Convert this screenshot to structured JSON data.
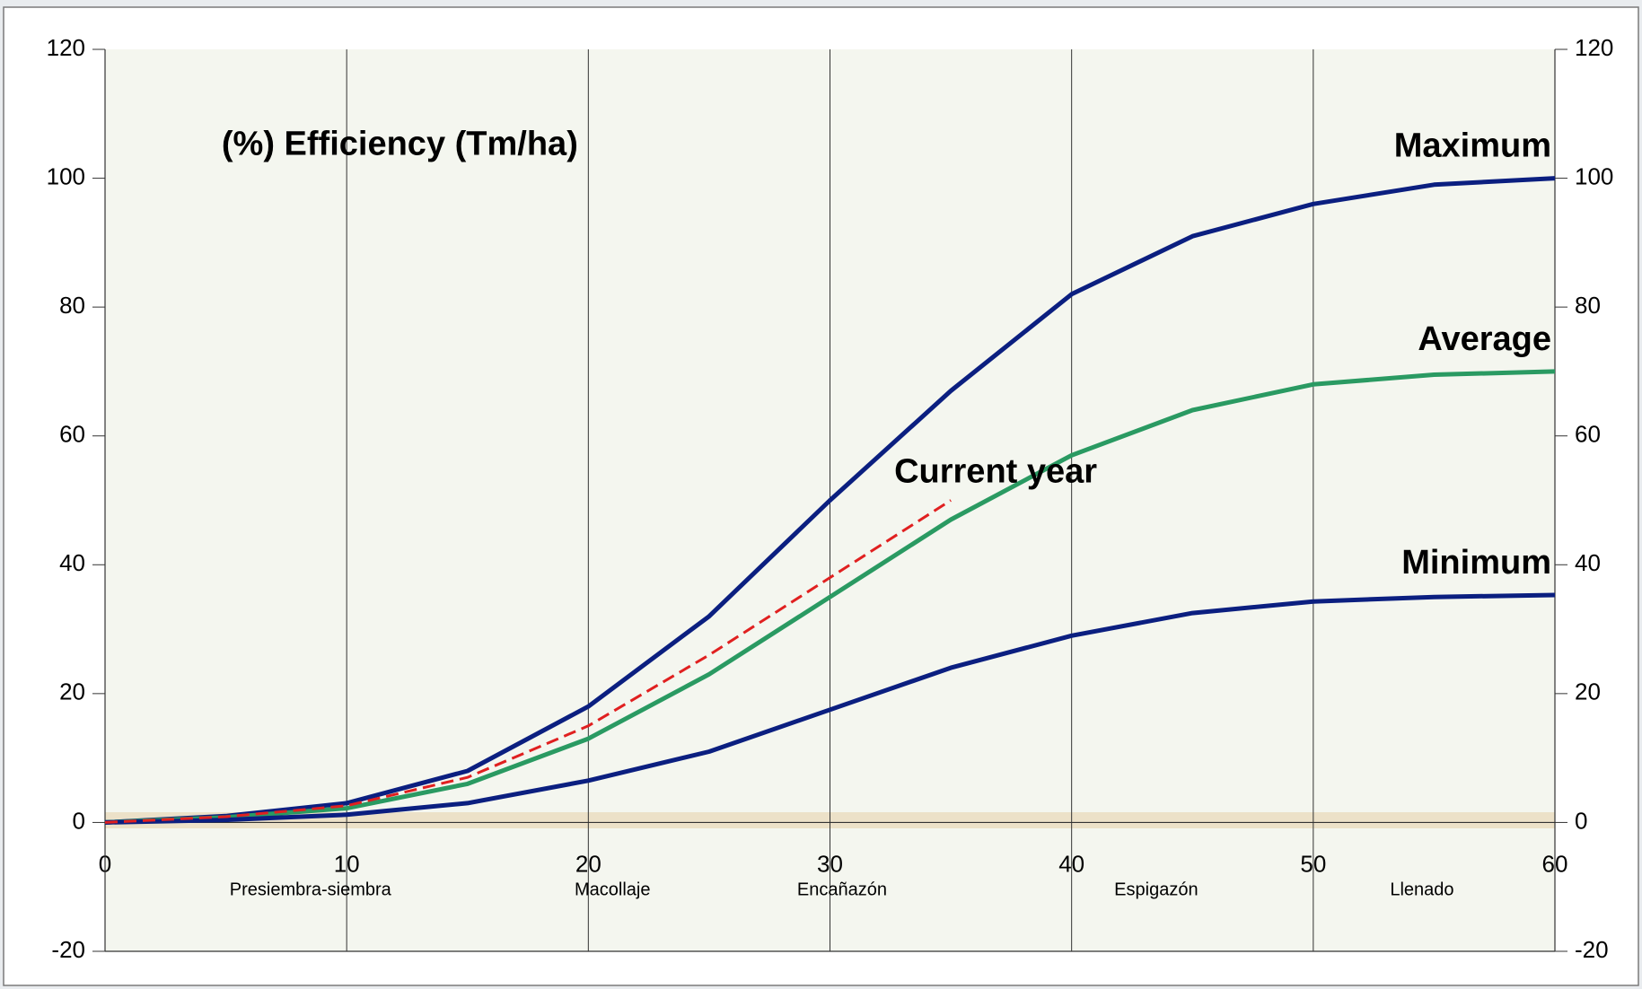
{
  "chart_data": {
    "type": "line",
    "y_label": "(%) Efficiency (Tm/ha)",
    "x": [
      0,
      5,
      10,
      15,
      20,
      25,
      30,
      35,
      40,
      45,
      50,
      55,
      60
    ],
    "series": [
      {
        "name": "Maximum",
        "color": "#0b1f80",
        "values": [
          0,
          1,
          3,
          8,
          18,
          32,
          50,
          67,
          82,
          91,
          96,
          99,
          100
        ]
      },
      {
        "name": "Average",
        "color": "#2a9a62",
        "values": [
          0,
          0.8,
          2.2,
          6,
          13,
          23,
          35,
          47,
          57,
          64,
          68,
          69.5,
          70
        ]
      },
      {
        "name": "Minimum",
        "color": "#0b1f80",
        "values": [
          0,
          0.4,
          1.2,
          3,
          6.5,
          11,
          17.5,
          24,
          29,
          32.5,
          34.3,
          35,
          35.3
        ]
      },
      {
        "name": "Current year",
        "color": "#e02020",
        "dashed": true,
        "values": [
          0,
          0.9,
          2.6,
          7,
          15,
          26,
          38,
          50,
          null,
          null,
          null,
          null,
          null
        ]
      }
    ],
    "stage_labels": [
      "Presiembra-siembra",
      "Macollaje",
      "Encañazón",
      "Espigazón",
      "Llenado"
    ],
    "xlim": [
      0,
      60
    ],
    "xticks": [
      0,
      10,
      20,
      30,
      40,
      50,
      60
    ],
    "ylim": [
      -20,
      120
    ],
    "yticks": [
      -20,
      0,
      20,
      40,
      60,
      80,
      100,
      120
    ],
    "y2lim": [
      -20,
      120
    ],
    "y2ticks": [
      -20,
      0,
      20,
      40,
      60,
      80,
      100,
      120
    ],
    "grid": "x"
  }
}
